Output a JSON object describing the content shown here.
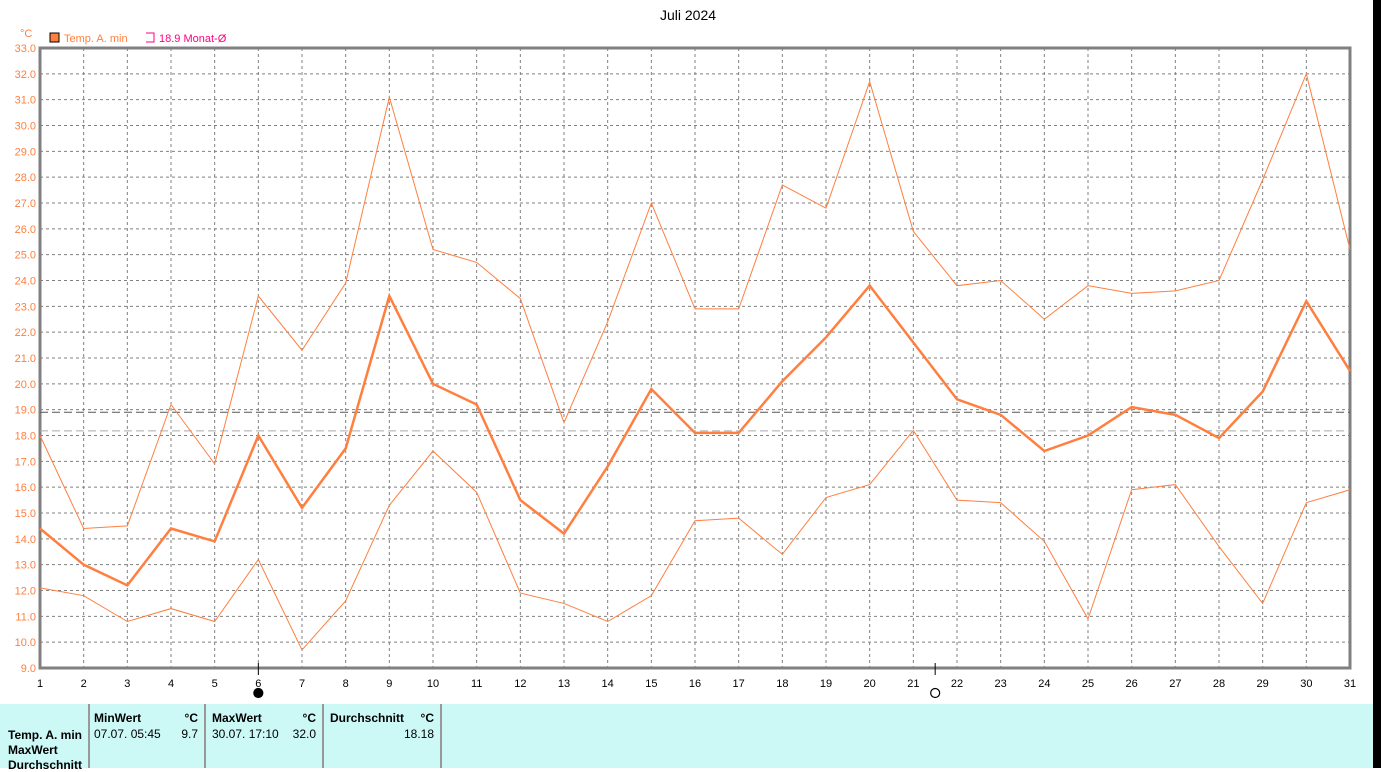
{
  "chart_data": {
    "type": "line",
    "title": "Juli 2024",
    "ylabel": "°C",
    "xlabel": "",
    "ylim": [
      9.0,
      33.0
    ],
    "ytick_step": 1.0,
    "x": [
      1,
      2,
      3,
      4,
      5,
      6,
      7,
      8,
      9,
      10,
      11,
      12,
      13,
      14,
      15,
      16,
      17,
      18,
      19,
      20,
      21,
      22,
      23,
      24,
      25,
      26,
      27,
      28,
      29,
      30,
      31
    ],
    "grid": true,
    "legend_position": "top-left",
    "legend": [
      {
        "label": "Temp. A. min",
        "color": "#ff7f3f"
      },
      {
        "label": "18.9 Monat-Ø",
        "color": "#ff0080"
      }
    ],
    "series": [
      {
        "name": "Temp. A. min",
        "role": "mean",
        "color": "#ff7f3f",
        "values": [
          14.4,
          13.0,
          12.2,
          14.4,
          13.9,
          18.0,
          15.2,
          17.5,
          23.4,
          20.0,
          19.2,
          15.5,
          14.2,
          16.8,
          19.8,
          18.1,
          18.1,
          20.1,
          21.8,
          23.8,
          21.6,
          19.4,
          18.8,
          17.4,
          18.0,
          19.1,
          18.8,
          17.9,
          19.7,
          23.2,
          20.5
        ]
      },
      {
        "role": "max",
        "color": "#ff7f3f",
        "values": [
          18.0,
          14.4,
          14.5,
          19.2,
          16.9,
          23.4,
          21.3,
          23.9,
          31.1,
          25.2,
          24.7,
          23.3,
          18.5,
          22.4,
          27.0,
          22.9,
          22.9,
          27.7,
          26.8,
          31.7,
          25.9,
          23.8,
          24.0,
          22.5,
          23.8,
          23.5,
          23.6,
          24.0,
          27.9,
          32.0,
          25.2
        ]
      },
      {
        "role": "min",
        "color": "#ff7f3f",
        "values": [
          12.1,
          11.8,
          10.8,
          11.3,
          10.8,
          13.2,
          9.7,
          11.6,
          15.3,
          17.4,
          15.8,
          11.9,
          11.5,
          10.8,
          11.8,
          14.7,
          14.8,
          13.4,
          15.6,
          16.1,
          18.2,
          15.5,
          15.4,
          13.9,
          10.9,
          15.9,
          16.1,
          13.7,
          11.5,
          15.4,
          15.9
        ]
      }
    ],
    "reference_lines": [
      {
        "value": 18.9,
        "color": "#555555"
      },
      {
        "value": 18.18,
        "color": "#aaaaaa"
      }
    ],
    "moon_phases": [
      {
        "day": 6.0,
        "phase": "new-moon"
      },
      {
        "day": 21.5,
        "phase": "full-moon"
      }
    ]
  },
  "stats": {
    "row_labels": [
      "Temp. A. min",
      "MaxWert",
      "Durchschnitt"
    ],
    "min": {
      "header": "MinWert",
      "unit": "°C",
      "date": "07.07.  05:45",
      "value": "9.7"
    },
    "max": {
      "header": "MaxWert",
      "unit": "°C",
      "date": "30.07.  17:10",
      "value": "32.0"
    },
    "avg": {
      "header": "Durchschnitt",
      "unit": "°C",
      "value": "18.18"
    }
  }
}
